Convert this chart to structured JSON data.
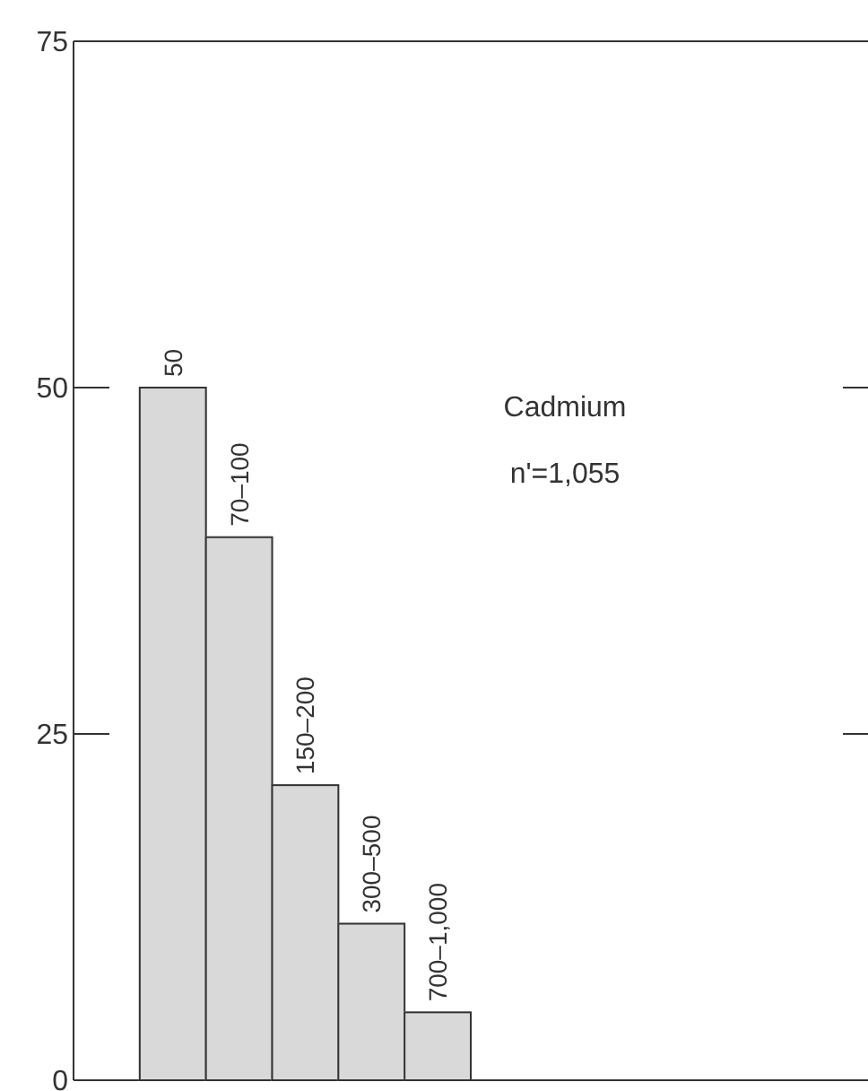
{
  "chart_data": {
    "type": "bar",
    "categories": [
      "50",
      "70–100",
      "150–200",
      "300–500",
      "700–1,000"
    ],
    "values": [
      50,
      39.2,
      21.3,
      11.3,
      4.9
    ],
    "color": "#d9d9d9",
    "ylim": [
      0,
      75
    ],
    "yticks": [
      0,
      25,
      50,
      75
    ],
    "annotations": [
      "Cadmium",
      "n'=1,055"
    ]
  }
}
